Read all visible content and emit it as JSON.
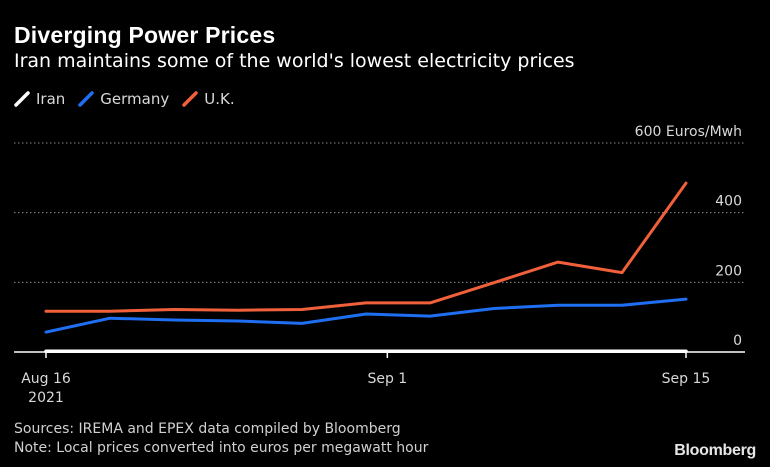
{
  "header": {
    "title": "Diverging Power Prices",
    "subtitle": "Iran maintains some of the world's lowest electricity prices"
  },
  "legend": [
    {
      "name": "Iran",
      "color": "#ffffff"
    },
    {
      "name": "Germany",
      "color": "#1f6ff2"
    },
    {
      "name": "U.K.",
      "color": "#f0603a"
    }
  ],
  "footer": {
    "sources": "Sources: IREMA and EPEX data compiled by Bloomberg",
    "note": "Note: Local prices converted into euros per megawatt hour"
  },
  "logo": "Bloomberg",
  "chart_data": {
    "type": "line",
    "ylim": [
      0,
      600
    ],
    "yticks": [
      {
        "value": 0,
        "label": "0"
      },
      {
        "value": 200,
        "label": "200"
      },
      {
        "value": 400,
        "label": "400"
      },
      {
        "value": 600,
        "label": "600 Euros/Mwh"
      }
    ],
    "xlim": [
      "2021-08-16",
      "2021-09-15"
    ],
    "xticks": [
      {
        "date": "2021-08-16",
        "label": "Aug 16",
        "sublabel": "2021"
      },
      {
        "date": "2021-09-01",
        "label": "Sep 1",
        "sublabel": ""
      },
      {
        "date": "2021-09-15",
        "label": "Sep 15",
        "sublabel": ""
      }
    ],
    "grid": true,
    "series": [
      {
        "name": "Iran",
        "color": "#ffffff",
        "points": [
          [
            "2021-08-16",
            2
          ],
          [
            "2021-09-15",
            2
          ]
        ]
      },
      {
        "name": "Germany",
        "color": "#1f6ff2",
        "points": [
          [
            "2021-08-16",
            57
          ],
          [
            "2021-08-19",
            97
          ],
          [
            "2021-08-22",
            92
          ],
          [
            "2021-08-25",
            89
          ],
          [
            "2021-08-28",
            82
          ],
          [
            "2021-08-31",
            109
          ],
          [
            "2021-09-03",
            103
          ],
          [
            "2021-09-06",
            125
          ],
          [
            "2021-09-09",
            134
          ],
          [
            "2021-09-12",
            134
          ],
          [
            "2021-09-15",
            152
          ]
        ]
      },
      {
        "name": "U.K.",
        "color": "#f0603a",
        "points": [
          [
            "2021-08-16",
            117
          ],
          [
            "2021-08-19",
            117
          ],
          [
            "2021-08-22",
            122
          ],
          [
            "2021-08-25",
            120
          ],
          [
            "2021-08-28",
            122
          ],
          [
            "2021-08-31",
            141
          ],
          [
            "2021-09-03",
            141
          ],
          [
            "2021-09-06",
            199
          ],
          [
            "2021-09-09",
            258
          ],
          [
            "2021-09-12",
            228
          ],
          [
            "2021-09-15",
            485
          ]
        ]
      }
    ]
  }
}
